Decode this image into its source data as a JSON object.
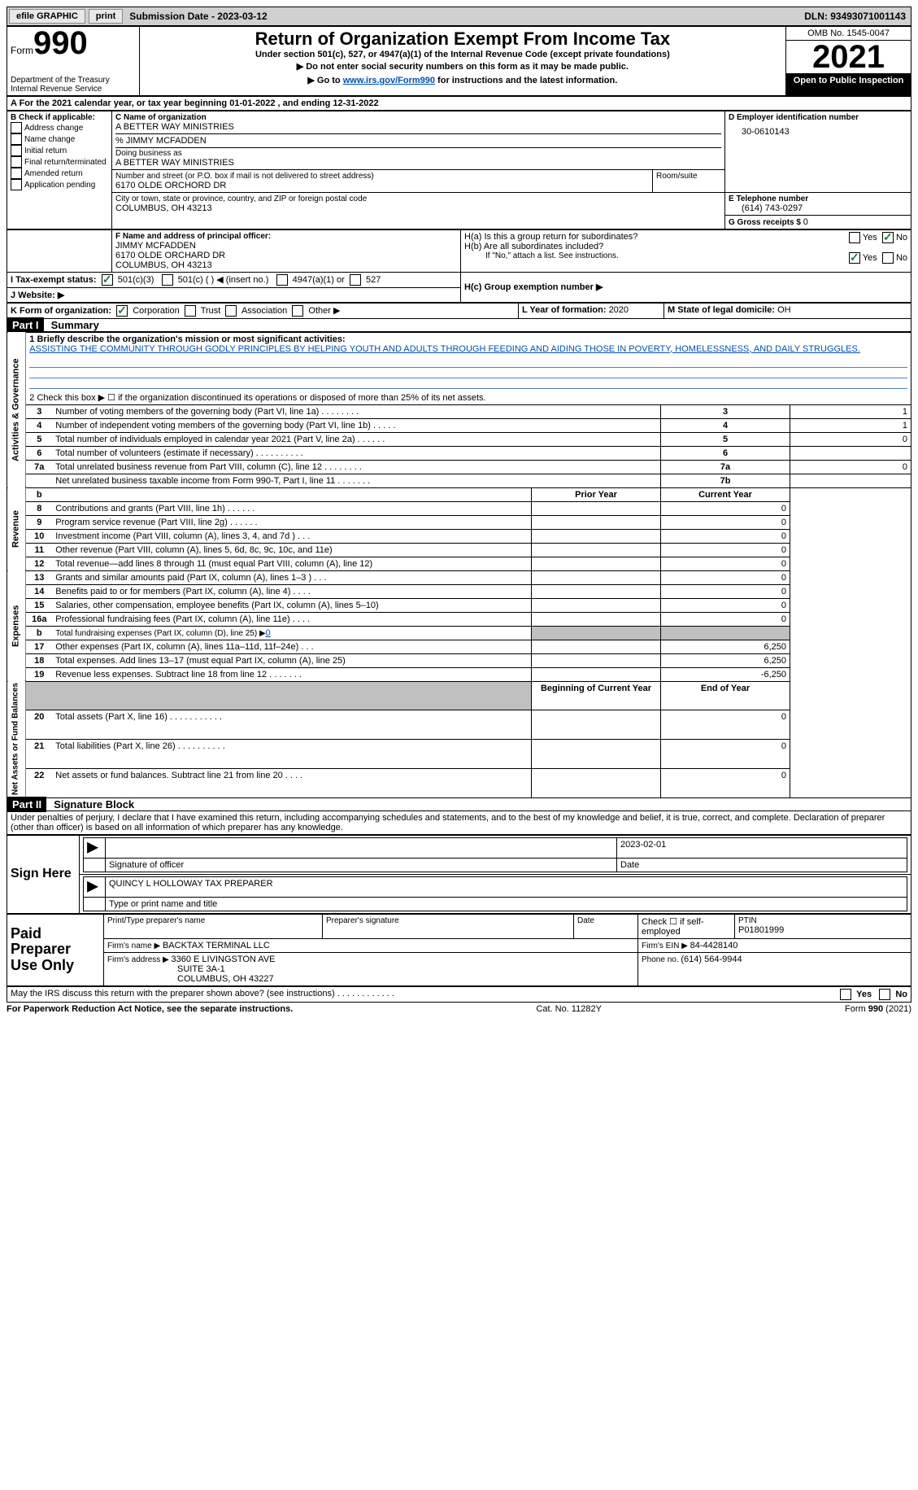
{
  "top_bar": {
    "efile_label": "efile GRAPHIC",
    "print_btn": "print",
    "submission_label": "Submission Date - 2023-03-12",
    "dln_label": "DLN: 93493071001143"
  },
  "header": {
    "form_word": "Form",
    "form_num": "990",
    "dept": "Department of the Treasury",
    "irs": "Internal Revenue Service",
    "title": "Return of Organization Exempt From Income Tax",
    "subtitle": "Under section 501(c), 527, or 4947(a)(1) of the Internal Revenue Code (except private foundations)",
    "instr1": "▶ Do not enter social security numbers on this form as it may be made public.",
    "instr2_pre": "▶ Go to ",
    "instr2_link": "www.irs.gov/Form990",
    "instr2_post": " for instructions and the latest information.",
    "omb": "OMB No. 1545-0047",
    "year": "2021",
    "open_public": "Open to Public Inspection"
  },
  "line_a": {
    "text_pre": "A For the 2021 calendar year, or tax year beginning ",
    "begin": "01-01-2022",
    "mid": " , and ending ",
    "end": "12-31-2022"
  },
  "b": {
    "label": "B Check if applicable:",
    "addr_change": "Address change",
    "name_change": "Name change",
    "initial": "Initial return",
    "final": "Final return/terminated",
    "amended": "Amended return",
    "app_pending": "Application pending"
  },
  "c": {
    "name_label": "C Name of organization",
    "name": "A BETTER WAY MINISTRIES",
    "care_of": "% JIMMY MCFADDEN",
    "dba_label": "Doing business as",
    "dba": "A BETTER WAY MINISTRIES",
    "street_label": "Number and street (or P.O. box if mail is not delivered to street address)",
    "street": "6170 OLDE ORCHORD DR",
    "room_label": "Room/suite",
    "city_label": "City or town, state or province, country, and ZIP or foreign postal code",
    "city": "COLUMBUS, OH  43213"
  },
  "d": {
    "label": "D Employer identification number",
    "value": "30-0610143"
  },
  "e": {
    "label": "E Telephone number",
    "value": "(614) 743-0297"
  },
  "g": {
    "label": "G Gross receipts $ ",
    "value": "0"
  },
  "f": {
    "label": "F Name and address of principal officer:",
    "name": "JIMMY MCFADDEN",
    "addr1": "6170 OLDE ORCHARD DR",
    "addr2": "COLUMBUS, OH  43213"
  },
  "h": {
    "a_label": "H(a)  Is this a group return for subordinates?",
    "b_label": "H(b)  Are all subordinates included?",
    "b_note": "If \"No,\" attach a list. See instructions.",
    "c_label": "H(c)  Group exemption number ▶",
    "yes": "Yes",
    "no": "No"
  },
  "i": {
    "label": "I    Tax-exempt status:",
    "c3": "501(c)(3)",
    "c_other": "501(c) (  ) ◀ (insert no.)",
    "a1": "4947(a)(1) or",
    "s527": "527"
  },
  "j": {
    "label": "J    Website: ▶"
  },
  "k": {
    "label": "K Form of organization:",
    "corp": "Corporation",
    "trust": "Trust",
    "assoc": "Association",
    "other": "Other ▶"
  },
  "l": {
    "label": "L Year of formation: ",
    "value": "2020"
  },
  "m": {
    "label": "M State of legal domicile: ",
    "value": "OH"
  },
  "part1": {
    "badge": "Part I",
    "title": "Summary",
    "line1_label": "1  Briefly describe the organization's mission or most significant activities:",
    "mission": "ASSISTING THE COMMUNITY THROUGH GODLY PRINCIPLES BY HELPING YOUTH AND ADULTS THROUGH FEEDING AND AIDING THOSE IN POVERTY, HOMELESSNESS, AND DAILY STRUGGLES.",
    "line2": "2   Check this box ▶ ☐ if the organization discontinued its operations or disposed of more than 25% of its net assets.",
    "sections": {
      "ag": "Activities & Governance",
      "rev": "Revenue",
      "exp": "Expenses",
      "nafb": "Net Assets or Fund Balances"
    },
    "rows": [
      {
        "n": "3",
        "t": "Number of voting members of the governing body (Part VI, line 1a)  .   .   .   .   .   .   .   .",
        "box": "3",
        "v": "1"
      },
      {
        "n": "4",
        "t": "Number of independent voting members of the governing body (Part VI, line 1b)   .   .   .   .   .",
        "box": "4",
        "v": "1"
      },
      {
        "n": "5",
        "t": "Total number of individuals employed in calendar year 2021 (Part V, line 2a)   .   .   .   .   .   .",
        "box": "5",
        "v": "0"
      },
      {
        "n": "6",
        "t": "Total number of volunteers (estimate if necessary)    .    .    .    .    .    .    .    .    .    .",
        "box": "6",
        "v": ""
      },
      {
        "n": "7a",
        "t": "Total unrelated business revenue from Part VIII, column (C), line 12   .   .   .   .   .   .   .   .",
        "box": "7a",
        "v": "0"
      },
      {
        "n": "",
        "t": "Net unrelated business taxable income from Form 990-T, Part I, line 11   .   .   .   .   .   .   .",
        "box": "7b",
        "v": ""
      }
    ],
    "col_prior": "Prior Year",
    "col_current": "Current Year",
    "rev_rows": [
      {
        "n": "8",
        "t": "Contributions and grants (Part VIII, line 1h)   .   .   .   .   .   .",
        "p": "",
        "c": "0"
      },
      {
        "n": "9",
        "t": "Program service revenue (Part VIII, line 2g)   .   .   .   .   .   .",
        "p": "",
        "c": "0"
      },
      {
        "n": "10",
        "t": "Investment income (Part VIII, column (A), lines 3, 4, and 7d )   .   .   .",
        "p": "",
        "c": "0"
      },
      {
        "n": "11",
        "t": "Other revenue (Part VIII, column (A), lines 5, 6d, 8c, 9c, 10c, and 11e)",
        "p": "",
        "c": "0"
      },
      {
        "n": "12",
        "t": "Total revenue—add lines 8 through 11 (must equal Part VIII, column (A), line 12)",
        "p": "",
        "c": "0"
      }
    ],
    "exp_rows": [
      {
        "n": "13",
        "t": "Grants and similar amounts paid (Part IX, column (A), lines 1–3 )   .   .   .",
        "p": "",
        "c": "0"
      },
      {
        "n": "14",
        "t": "Benefits paid to or for members (Part IX, column (A), line 4)   .   .   .   .",
        "p": "",
        "c": "0"
      },
      {
        "n": "15",
        "t": "Salaries, other compensation, employee benefits (Part IX, column (A), lines 5–10)",
        "p": "",
        "c": "0"
      },
      {
        "n": "16a",
        "t": "Professional fundraising fees (Part IX, column (A), line 11e)   .   .   .   .",
        "p": "",
        "c": "0"
      },
      {
        "n": "b",
        "t": "Total fundraising expenses (Part IX, column (D), line 25) ▶",
        "fund": "0",
        "shade": true
      },
      {
        "n": "17",
        "t": "Other expenses (Part IX, column (A), lines 11a–11d, 11f–24e)   .   .   .",
        "p": "",
        "c": "6,250"
      },
      {
        "n": "18",
        "t": "Total expenses. Add lines 13–17 (must equal Part IX, column (A), line 25)",
        "p": "",
        "c": "6,250"
      },
      {
        "n": "19",
        "t": "Revenue less expenses. Subtract line 18 from line 12   .   .   .   .   .   .   .",
        "p": "",
        "c": "-6,250"
      }
    ],
    "col_begin": "Beginning of Current Year",
    "col_end": "End of Year",
    "na_rows": [
      {
        "n": "20",
        "t": "Total assets (Part X, line 16)   .   .   .   .   .   .   .   .   .   .   .",
        "p": "",
        "c": "0"
      },
      {
        "n": "21",
        "t": "Total liabilities (Part X, line 26)   .   .   .   .   .   .   .   .   .   .",
        "p": "",
        "c": "0"
      },
      {
        "n": "22",
        "t": "Net assets or fund balances. Subtract line 21 from line 20   .   .   .   .",
        "p": "",
        "c": "0"
      }
    ]
  },
  "part2": {
    "badge": "Part II",
    "title": "Signature Block",
    "perjury": "Under penalties of perjury, I declare that I have examined this return, including accompanying schedules and statements, and to the best of my knowledge and belief, it is true, correct, and complete. Declaration of preparer (other than officer) is based on all information of which preparer has any knowledge.",
    "sign_here": "Sign Here",
    "sig_officer": "Signature of officer",
    "date_label": "Date",
    "sig_date": "2023-02-01",
    "officer_name": "QUINCY L HOLLOWAY  TAX PREPARER",
    "type_print": "Type or print name and title",
    "paid_prep": "Paid Preparer Use Only",
    "print_name_label": "Print/Type preparer's name",
    "prep_sig_label": "Preparer's signature",
    "prep_date_label": "Date",
    "check_self": "Check ☐ if self-employed",
    "ptin_label": "PTIN",
    "ptin": "P01801999",
    "firm_name_label": "Firm's name    ▶ ",
    "firm_name": "BACKTAX TERMINAL LLC",
    "firm_ein_label": "Firm's EIN ▶ ",
    "firm_ein": "84-4428140",
    "firm_addr_label": "Firm's address ▶ ",
    "firm_addr1": "3360 E LIVINGSTON AVE",
    "firm_addr2": "SUITE 3A-1",
    "firm_addr3": "COLUMBUS, OH  43227",
    "phone_label": "Phone no. ",
    "phone": "(614) 564-9944",
    "discuss": "May the IRS discuss this return with the preparer shown above? (see instructions)   .   .   .   .   .   .   .   .   .   .   .   .",
    "discuss_yes": "Yes",
    "discuss_no": "No"
  },
  "footer": {
    "pra": "For Paperwork Reduction Act Notice, see the separate instructions.",
    "cat": "Cat. No. 11282Y",
    "form": "Form 990 (2021)"
  }
}
